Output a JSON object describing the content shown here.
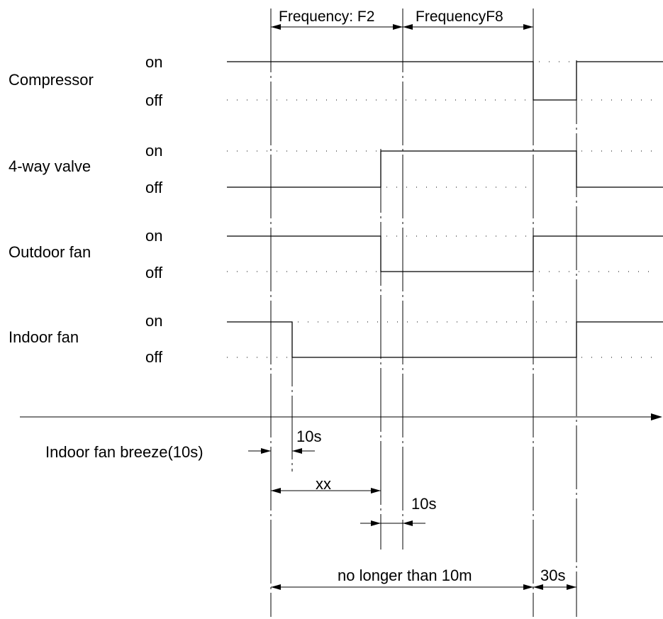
{
  "signals": [
    {
      "name": "Compressor",
      "on": "on",
      "off": "off"
    },
    {
      "name": "4-way valve",
      "on": "on",
      "off": "off"
    },
    {
      "name": "Outdoor fan",
      "on": "on",
      "off": "off"
    },
    {
      "name": "Indoor fan",
      "on": "on",
      "off": "off"
    }
  ],
  "top_labels": {
    "freq_f2": "Frequency: F2",
    "freq_f8": "FrequencyF8"
  },
  "timing": {
    "breeze_label": "Indoor fan breeze(10s)",
    "breeze_value": "10s",
    "xx": "xx",
    "delay_10s": "10s",
    "max_duration": "no longer than 10m",
    "wait_30s": "30s"
  }
}
